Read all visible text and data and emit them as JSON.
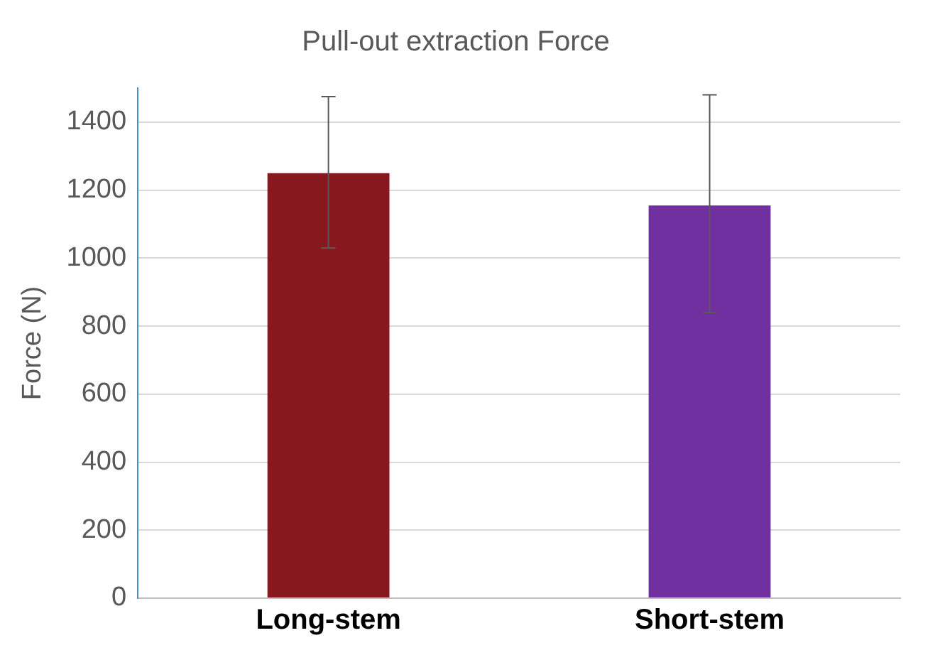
{
  "chart_data": {
    "type": "bar",
    "title": "Pull-out extraction Force",
    "ylabel": "Force (N)",
    "categories": [
      "Long-stem",
      "Short-stem"
    ],
    "values": [
      1250,
      1155
    ],
    "colors": [
      "#87181e",
      "#7030a0"
    ],
    "errors": [
      [
        1030,
        1475
      ],
      [
        840,
        1480
      ]
    ],
    "ylim": [
      0,
      1500
    ],
    "yticks": [
      0,
      200,
      400,
      600,
      800,
      1000,
      1200,
      1400
    ],
    "grid": "y",
    "legend": false
  }
}
